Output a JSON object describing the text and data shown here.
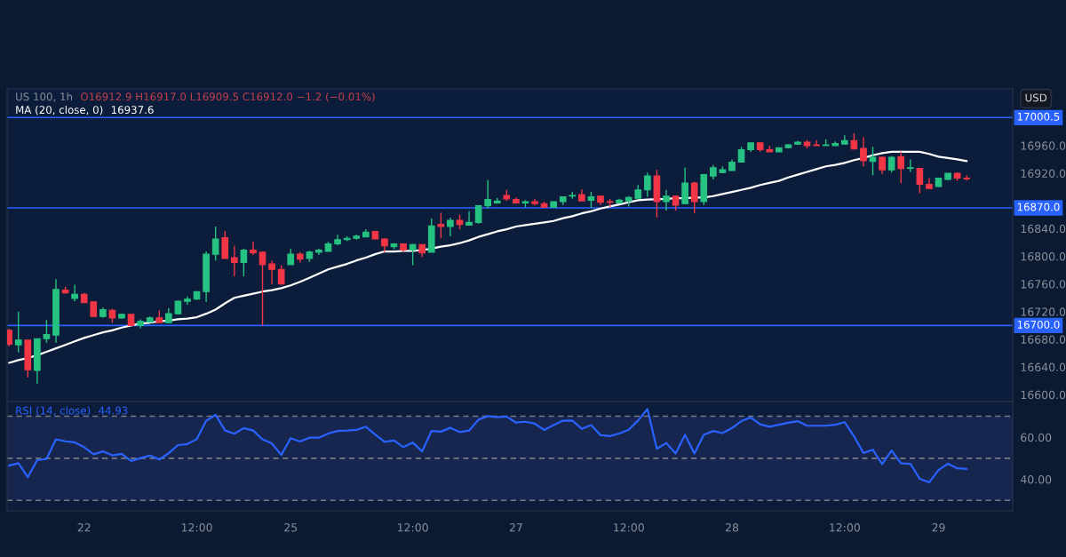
{
  "chart_data": [
    {
      "type": "candlestick",
      "title": "US 100, 1h",
      "annotations": [
        "O16912.9 H16917.0 L16909.5 C16912.0 −1.2 (−0.01%)",
        "16937.6",
        "USD"
      ],
      "categories": [
        null,
        null,
        null,
        null,
        null,
        null,
        null,
        null,
        null,
        null,
        null,
        null,
        null,
        null,
        null,
        null,
        null,
        null,
        null,
        null,
        null,
        null,
        null,
        null,
        null,
        null,
        null,
        null,
        null,
        null,
        null,
        null,
        null,
        null,
        null,
        null,
        null,
        null,
        null,
        null,
        null,
        null,
        null,
        null,
        null,
        null,
        null,
        null,
        null,
        null,
        null,
        null,
        null,
        null,
        null,
        null,
        null,
        null,
        null,
        null,
        null,
        null,
        null,
        null,
        null,
        null,
        null,
        null,
        null,
        null,
        null,
        null,
        null,
        null,
        null,
        null,
        null,
        null,
        null,
        null,
        null,
        null,
        null,
        null,
        null,
        null,
        null,
        null,
        null,
        null,
        null,
        null,
        null,
        null,
        null,
        null,
        null,
        null,
        null,
        null,
        null,
        null,
        null
      ],
      "ohlc": [
        [
          16693,
          16695,
          16670,
          16673
        ],
        [
          16672,
          16720,
          16661,
          16679
        ],
        [
          16679,
          16679,
          16625,
          16636
        ],
        [
          16635,
          16681,
          16616,
          16681
        ],
        [
          16681,
          16708,
          16675,
          16687
        ],
        [
          16686,
          16767,
          16675,
          16752
        ],
        [
          16751,
          16756,
          16746,
          16747
        ],
        [
          16739,
          16759,
          16735,
          16745
        ],
        [
          16745,
          16747,
          16733,
          16733
        ],
        [
          16734,
          16735,
          16712,
          16713
        ],
        [
          16713,
          16726,
          16711,
          16723
        ],
        [
          16722,
          16724,
          16704,
          16711
        ],
        [
          16711,
          16717,
          16710,
          16716
        ],
        [
          16716,
          16717,
          16700,
          16700
        ],
        [
          16700,
          16709,
          16696,
          16706
        ],
        [
          16705,
          16713,
          16704,
          16711
        ],
        [
          16711,
          16722,
          16704,
          16704
        ],
        [
          16704,
          16725,
          16703,
          16717
        ],
        [
          16717,
          16736,
          16716,
          16735
        ],
        [
          16735,
          16742,
          16730,
          16738
        ],
        [
          16738,
          16749,
          16737,
          16749
        ],
        [
          16749,
          16807,
          16734,
          16803
        ],
        [
          16803,
          16843,
          16794,
          16825
        ],
        [
          16827,
          16837,
          16797,
          16797
        ],
        [
          16798,
          16815,
          16771,
          16791
        ],
        [
          16791,
          16811,
          16771,
          16809
        ],
        [
          16809,
          16821,
          16802,
          16805
        ],
        [
          16806,
          16806,
          16700,
          16788
        ],
        [
          16789,
          16794,
          16760,
          16781
        ],
        [
          16781,
          16787,
          16759,
          16760
        ],
        [
          16788,
          16811,
          16788,
          16803
        ],
        [
          16803,
          16806,
          16791,
          16796
        ],
        [
          16797,
          16808,
          16792,
          16806
        ],
        [
          16806,
          16811,
          16802,
          16809
        ],
        [
          16807,
          16821,
          16807,
          16818
        ],
        [
          16818,
          16831,
          16816,
          16824
        ],
        [
          16824,
          16829,
          16822,
          16826
        ],
        [
          16826,
          16831,
          16824,
          16829
        ],
        [
          16828,
          16839,
          16828,
          16835
        ],
        [
          16836,
          16837,
          16825,
          16825
        ],
        [
          16825,
          16826,
          16806,
          16815
        ],
        [
          16814,
          16819,
          16810,
          16818
        ],
        [
          16818,
          16818,
          16806,
          16809
        ],
        [
          16809,
          16818,
          16787,
          16817
        ],
        [
          16817,
          16817,
          16799,
          16805
        ],
        [
          16806,
          16855,
          16806,
          16844
        ],
        [
          16846,
          16863,
          16826,
          16843
        ],
        [
          16843,
          16856,
          16829,
          16852
        ],
        [
          16852,
          16860,
          16839,
          16846
        ],
        [
          16845,
          16865,
          16845,
          16849
        ],
        [
          16849,
          16874,
          16847,
          16873
        ],
        [
          16873,
          16910,
          16869,
          16882
        ],
        [
          16877,
          16884,
          16876,
          16880
        ],
        [
          16888,
          16896,
          16880,
          16883
        ],
        [
          16882,
          16885,
          16876,
          16877
        ],
        [
          16877,
          16881,
          16871,
          16879
        ],
        [
          16879,
          16883,
          16874,
          16876
        ],
        [
          16876,
          16879,
          16871,
          16871
        ],
        [
          16871,
          16879,
          16871,
          16879
        ],
        [
          16879,
          16886,
          16874,
          16886
        ],
        [
          16887,
          16893,
          16883,
          16888
        ],
        [
          16889,
          16897,
          16880,
          16880
        ],
        [
          16881,
          16893,
          16870,
          16886
        ],
        [
          16887,
          16887,
          16874,
          16878
        ],
        [
          16879,
          16883,
          16871,
          16878
        ],
        [
          16877,
          16883,
          16876,
          16881
        ],
        [
          16880,
          16887,
          16872,
          16885
        ],
        [
          16884,
          16903,
          16884,
          16896
        ],
        [
          16896,
          16921,
          16886,
          16916
        ],
        [
          16916,
          16925,
          16856,
          16879
        ],
        [
          16879,
          16896,
          16866,
          16887
        ],
        [
          16887,
          16888,
          16866,
          16874
        ],
        [
          16876,
          16928,
          16875,
          16906
        ],
        [
          16906,
          16908,
          16862,
          16879
        ],
        [
          16879,
          16919,
          16874,
          16918
        ],
        [
          16916,
          16932,
          16911,
          16928
        ],
        [
          16921,
          16930,
          16920,
          16925
        ],
        [
          16924,
          16940,
          16924,
          16936
        ],
        [
          16936,
          16958,
          16936,
          16954
        ],
        [
          16954,
          16964,
          16951,
          16964
        ],
        [
          16964,
          16964,
          16951,
          16954
        ],
        [
          16954,
          16960,
          16951,
          16951
        ],
        [
          16951,
          16957,
          16951,
          16957
        ],
        [
          16957,
          16962,
          16956,
          16961
        ],
        [
          16962,
          16967,
          16961,
          16965
        ],
        [
          16965,
          16968,
          16956,
          16960
        ],
        [
          16961,
          16968,
          16960,
          16960
        ],
        [
          16960,
          16969,
          16960,
          16961
        ],
        [
          16960,
          16966,
          16960,
          16963
        ],
        [
          16962,
          16975,
          16962,
          16967
        ],
        [
          16967,
          16978,
          16955,
          16955
        ],
        [
          16956,
          16972,
          16930,
          16938
        ],
        [
          16937,
          16958,
          16917,
          16943
        ],
        [
          16943,
          16944,
          16919,
          16925
        ],
        [
          16925,
          16945,
          16921,
          16943
        ],
        [
          16944,
          16951,
          16906,
          16927
        ],
        [
          16927,
          16940,
          16922,
          16928
        ],
        [
          16927,
          16928,
          16891,
          16904
        ],
        [
          16904,
          16913,
          16898,
          16898
        ],
        [
          16901,
          16913,
          16900,
          16913
        ],
        [
          16911,
          16920,
          16910,
          16920
        ],
        [
          16920,
          16921,
          16909,
          16913
        ],
        [
          16912.9,
          16917.0,
          16909.5,
          16912.0
        ]
      ],
      "colors": [
        "#f23645",
        "#26c281",
        "#f23645",
        "#26c281",
        "#26c281",
        "#26c281",
        "#f23645",
        "#26c281",
        "#f23645",
        "#f23645",
        "#26c281",
        "#f23645",
        "#26c281",
        "#f23645",
        "#26c281",
        "#26c281",
        "#f23645",
        "#26c281",
        "#26c281",
        "#26c281",
        "#26c281",
        "#26c281",
        "#26c281",
        "#f23645",
        "#f23645",
        "#26c281",
        "#f23645",
        "#f23645",
        "#f23645",
        "#f23645",
        "#26c281",
        "#f23645",
        "#26c281",
        "#26c281",
        "#26c281",
        "#26c281",
        "#26c281",
        "#26c281",
        "#26c281",
        "#f23645",
        "#f23645",
        "#26c281",
        "#f23645",
        "#26c281",
        "#f23645",
        "#26c281",
        "#f23645",
        "#26c281",
        "#f23645",
        "#26c281",
        "#26c281",
        "#26c281",
        "#26c281",
        "#f23645",
        "#f23645",
        "#26c281",
        "#f23645",
        "#f23645",
        "#26c281",
        "#26c281",
        "#26c281",
        "#f23645",
        "#26c281",
        "#f23645",
        "#f23645",
        "#26c281",
        "#26c281",
        "#26c281",
        "#26c281",
        "#f23645",
        "#26c281",
        "#f23645",
        "#26c281",
        "#f23645",
        "#26c281",
        "#26c281",
        "#26c281",
        "#26c281",
        "#26c281",
        "#26c281",
        "#f23645",
        "#f23645",
        "#26c281",
        "#26c281",
        "#26c281",
        "#f23645",
        "#f23645",
        "#26c281",
        "#26c281",
        "#26c281",
        "#f23645",
        "#f23645",
        "#26c281",
        "#f23645",
        "#26c281",
        "#f23645",
        "#26c281",
        "#f23645",
        "#f23645",
        "#26c281",
        "#26c281",
        "#f23645",
        "#f23645"
      ],
      "series": [
        {
          "type": "line",
          "name": "MA (20, close, 0)",
          "color": "#ffffff",
          "values": [
            16646,
            16650,
            16653,
            16657,
            16662,
            16667,
            16672,
            16677,
            16682,
            16686,
            16690,
            16693,
            16697,
            16700,
            16703,
            16704,
            16706,
            16707,
            16709,
            16710,
            16712,
            16717,
            16723,
            16732,
            16740,
            16743,
            16746,
            16749,
            16751,
            16754,
            16758,
            16763,
            16769,
            16775,
            16781,
            16785,
            16789,
            16794,
            16798,
            16803,
            16807,
            16807,
            16808,
            16808,
            16809,
            16811,
            16814,
            16816,
            16819,
            16823,
            16828,
            16832,
            16836,
            16839,
            16843,
            16845,
            16847,
            16849,
            16851,
            16855,
            16858,
            16862,
            16865,
            16869,
            16872,
            16875,
            16878,
            16881,
            16882,
            null,
            16883,
            16884,
            16884,
            16885,
            16885,
            16887,
            16890,
            16893,
            16896,
            16899,
            16903,
            16906,
            16909,
            16914,
            16918,
            16922,
            16926,
            16930,
            16932,
            16935,
            16939,
            16942,
            16946,
            16949,
            16951,
            16951,
            16951,
            16951,
            16948,
            16944,
            16942,
            16940,
            16937.6
          ]
        }
      ],
      "ylim": [
        16590,
        17042
      ],
      "yticks": [
        {
          "value": 16600,
          "label": "16600.0"
        },
        {
          "value": 16640,
          "label": "16640.0"
        },
        {
          "value": 16680,
          "label": "16680.0"
        },
        {
          "value": 16720,
          "label": "16720.0"
        },
        {
          "value": 16760,
          "label": "16760.0"
        },
        {
          "value": 16800,
          "label": "16800.0"
        },
        {
          "value": 16840,
          "label": "16840.0"
        },
        {
          "value": 16920,
          "label": "16920.0"
        },
        {
          "value": 16960,
          "label": "16960.0"
        }
      ],
      "ref_lines": [
        {
          "axis": "y",
          "value": 17000.5,
          "label": "17000.5",
          "color": "#2962ff"
        },
        {
          "axis": "y",
          "value": 16870.0,
          "label": "16870.0",
          "color": "#2962ff"
        },
        {
          "axis": "y",
          "value": 16700.0,
          "label": "16700.0",
          "color": "#2962ff"
        }
      ],
      "tick_labels": "y"
    },
    {
      "type": "line",
      "annotations": [
        "44.93"
      ],
      "categories": [
        null,
        null,
        null,
        null,
        null,
        null,
        null,
        null,
        "22",
        null,
        null,
        null,
        null,
        null,
        null,
        null,
        null,
        null,
        null,
        null,
        "12:00",
        null,
        null,
        null,
        null,
        null,
        null,
        null,
        null,
        null,
        "25",
        null,
        null,
        null,
        null,
        null,
        null,
        null,
        null,
        null,
        null,
        null,
        null,
        "12:00",
        null,
        null,
        null,
        null,
        null,
        null,
        null,
        null,
        null,
        null,
        "27",
        null,
        null,
        null,
        null,
        null,
        null,
        null,
        null,
        null,
        null,
        null,
        "12:00",
        null,
        null,
        null,
        null,
        null,
        null,
        null,
        null,
        null,
        null,
        "28",
        null,
        null,
        null,
        null,
        null,
        null,
        null,
        null,
        null,
        null,
        null,
        "12:00",
        null,
        null,
        null,
        null,
        null,
        null,
        null,
        null,
        null,
        "29",
        null,
        null,
        null
      ],
      "series": [
        {
          "name": "RSI (14, close)",
          "color": "#2962ff",
          "values": [
            46.5,
            47.7,
            41.0,
            49.1,
            49.7,
            59.0,
            58.1,
            57.6,
            55.3,
            51.9,
            53.3,
            51.4,
            52.1,
            48.7,
            50.1,
            51.3,
            49.4,
            52.4,
            56.3,
            56.8,
            59.1,
            67.9,
            70.7,
            63.3,
            61.7,
            64.4,
            63.2,
            59.0,
            57.0,
            51.6,
            59.6,
            58.0,
            59.8,
            59.8,
            61.8,
            63.0,
            63.2,
            63.5,
            65.0,
            61.3,
            57.8,
            58.5,
            55.3,
            57.5,
            53.3,
            63.0,
            62.7,
            64.5,
            62.5,
            63.2,
            68.4,
            70.1,
            69.6,
            69.9,
            67.0,
            67.4,
            66.5,
            63.5,
            65.8,
            67.9,
            68.0,
            64.0,
            65.8,
            61.0,
            60.6,
            61.8,
            63.6,
            68.0,
            73.4,
            54.5,
            57.3,
            52.3,
            61.2,
            52.3,
            61.2,
            63.0,
            62.0,
            64.4,
            67.7,
            69.4,
            66.2,
            65.0,
            66.0,
            66.9,
            67.7,
            65.5,
            65.5,
            65.5,
            66.0,
            67.2,
            60.5,
            52.5,
            54.1,
            47.2,
            53.7,
            47.6,
            47.4,
            40.2,
            38.5,
            44.4,
            47.4,
            45.2,
            44.93
          ]
        }
      ],
      "ylim": [
        25,
        77
      ],
      "yticks": [
        {
          "value": 60,
          "label": "60.00"
        },
        {
          "value": 40,
          "label": "40.00"
        }
      ],
      "ref_lines": [
        {
          "axis": "y",
          "value": 70,
          "color": "#787b86",
          "line_style": "dashed"
        },
        {
          "axis": "y",
          "value": 50,
          "color": "#787b86",
          "line_style": "dashed"
        },
        {
          "axis": "y",
          "value": 30,
          "color": "#787b86",
          "line_style": "dashed"
        }
      ],
      "bands": [
        {
          "axis": "y",
          "from": 30,
          "to": 70,
          "color": "#17264f"
        }
      ]
    }
  ]
}
